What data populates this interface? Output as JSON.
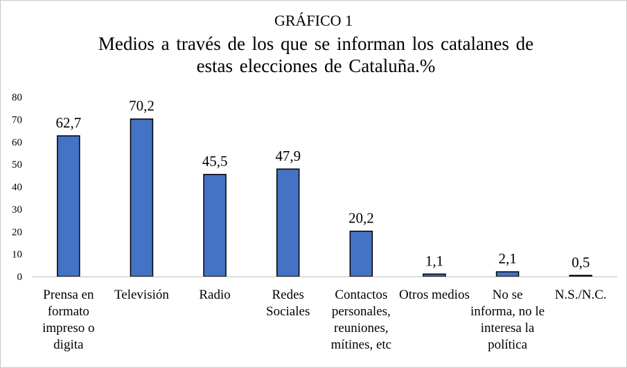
{
  "chart_data": {
    "type": "bar",
    "title": "GRÁFICO 1",
    "subtitle": "Medios a través de los que se informan los catalanes de estas elecciones de Cataluña.%",
    "xlabel": "",
    "ylabel": "",
    "ylim": [
      0,
      80
    ],
    "yticks": [
      "0",
      "10",
      "20",
      "30",
      "40",
      "50",
      "60",
      "70",
      "80"
    ],
    "grid": false,
    "legend": "none",
    "bar_color": "#4472c4",
    "categories": [
      "Prensa en formato impreso o digita",
      "Televisión",
      "Radio",
      "Redes Sociales",
      "Contactos personales, reuniones, mítines, etc",
      "Otros medios",
      "No se informa, no le interesa la política",
      "N.S./N.C."
    ],
    "values": [
      62.7,
      70.2,
      45.5,
      47.9,
      20.2,
      1.1,
      2.1,
      0.5
    ],
    "value_labels": [
      "62,7",
      "70,2",
      "45,5",
      "47,9",
      "20,2",
      "1,1",
      "2,1",
      "0,5"
    ]
  }
}
